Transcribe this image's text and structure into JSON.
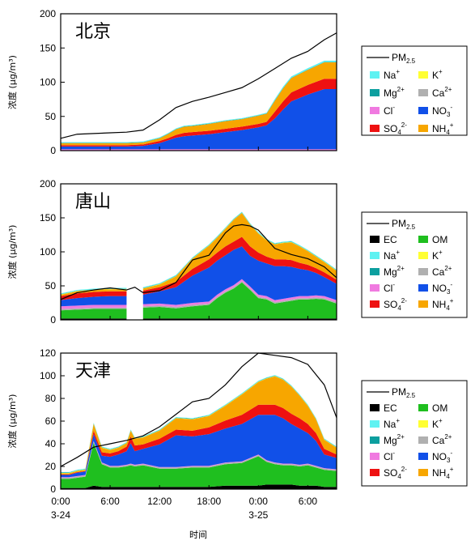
{
  "colors": {
    "EC": "#000000",
    "OM": "#1fbf1f",
    "Na+": "#5ff2f2",
    "K+": "#ffff33",
    "Mg2+": "#0c9f9f",
    "Ca2+": "#b0b0b0",
    "Cl-": "#f07ae0",
    "NO3-": "#1150e8",
    "SO42-": "#ee1111",
    "NH4+": "#f7a600",
    "PM2.5": "#000000"
  },
  "x_ticks": [
    {
      "h": 0,
      "label": "0:00",
      "sub": "3-24"
    },
    {
      "h": 6,
      "label": "6:00",
      "sub": ""
    },
    {
      "h": 12,
      "label": "12:00",
      "sub": ""
    },
    {
      "h": 18,
      "label": "18:00",
      "sub": ""
    },
    {
      "h": 24,
      "label": "0:00",
      "sub": "3-25"
    },
    {
      "h": 30,
      "label": "6:00",
      "sub": ""
    }
  ],
  "xlabel": "时间",
  "chart_data": [
    {
      "type": "area",
      "title": "北京",
      "ylabel": "浓度 (μg/m³)",
      "ylim": [
        0,
        200
      ],
      "yticks": [
        0,
        50,
        100,
        150,
        200
      ],
      "xlim": [
        0,
        33.5
      ],
      "x": [
        0,
        2,
        4,
        6,
        8,
        10,
        12,
        13,
        14,
        15,
        16,
        18,
        20,
        22,
        24,
        25,
        26,
        27,
        28,
        30,
        32,
        33.5
      ],
      "series": [
        {
          "key": "Cl-",
          "values": [
            2,
            2,
            2,
            2,
            2,
            2,
            2,
            2,
            2,
            2,
            2,
            2,
            2,
            2,
            2,
            2,
            2,
            2,
            2,
            2,
            2,
            2
          ]
        },
        {
          "key": "NO3-",
          "values": [
            4,
            4,
            4,
            4,
            4,
            5,
            9,
            13,
            17,
            19,
            20,
            22,
            25,
            28,
            32,
            35,
            45,
            58,
            70,
            80,
            88,
            88
          ]
        },
        {
          "key": "SO42-",
          "values": [
            2,
            2,
            2,
            2,
            2,
            2,
            3,
            3,
            4,
            5,
            5,
            5,
            5,
            5,
            5,
            5,
            10,
            12,
            13,
            14,
            15,
            15
          ]
        },
        {
          "key": "NH4+",
          "values": [
            3,
            3,
            3,
            3,
            3,
            3,
            4,
            6,
            8,
            9,
            9,
            10,
            11,
            11,
            12,
            12,
            16,
            19,
            21,
            22,
            24,
            24
          ]
        },
        {
          "key": "Mg2+",
          "values": [
            0.5,
            0.5,
            0.5,
            0.5,
            0.5,
            0.5,
            0.5,
            0.5,
            0.5,
            0.5,
            0.5,
            0.5,
            0.5,
            0.5,
            0.5,
            0.5,
            0.5,
            0.5,
            0.5,
            0.5,
            0.5,
            0.5
          ]
        },
        {
          "key": "Na+",
          "values": [
            1,
            1,
            1,
            1,
            1,
            1,
            1,
            1,
            1,
            1,
            1,
            1,
            1,
            1,
            1,
            1,
            2,
            2,
            2,
            2,
            2,
            2
          ]
        }
      ],
      "pm25": {
        "x": [
          0,
          2,
          4,
          6,
          8,
          10,
          12,
          14,
          16,
          18,
          20,
          22,
          24,
          26,
          28,
          30,
          32,
          33.5
        ],
        "values": [
          18,
          24,
          25,
          26,
          27,
          30,
          45,
          63,
          72,
          78,
          85,
          92,
          105,
          120,
          135,
          145,
          162,
          172
        ]
      },
      "legend": [
        "PM2.5",
        "Na+",
        "K+",
        "Mg2+",
        "Ca2+",
        "Cl-",
        "NO3-",
        "SO42-",
        "NH4+"
      ]
    },
    {
      "type": "area",
      "title": "唐山",
      "ylabel": "浓度 (μg/m³)",
      "ylim": [
        0,
        200
      ],
      "yticks": [
        0,
        50,
        100,
        150,
        200
      ],
      "xlim": [
        0,
        33.5
      ],
      "x": [
        0,
        2,
        4,
        6,
        8,
        10,
        12,
        14,
        16,
        18,
        19,
        20,
        21,
        22,
        23,
        24,
        25,
        26,
        27,
        28,
        29,
        30,
        31,
        32,
        33.5
      ],
      "gap": [
        8,
        10
      ],
      "series": [
        {
          "key": "EC",
          "values": [
            2,
            2,
            2,
            2,
            2,
            2,
            2,
            2,
            2,
            2,
            2,
            2,
            2,
            2,
            2,
            2,
            2,
            2,
            2,
            2,
            2,
            2,
            2,
            2,
            2
          ]
        },
        {
          "key": "OM",
          "values": [
            12,
            13,
            14,
            14,
            14,
            16,
            17,
            15,
            18,
            20,
            30,
            38,
            44,
            53,
            42,
            30,
            28,
            22,
            24,
            26,
            28,
            28,
            29,
            28,
            22
          ]
        },
        {
          "key": "Ca2+",
          "values": [
            2,
            2,
            2,
            2,
            2,
            2,
            2,
            2,
            2,
            2,
            2,
            2,
            2,
            2,
            2,
            2,
            2,
            2,
            2,
            2,
            2,
            2,
            2,
            2,
            2
          ]
        },
        {
          "key": "Cl-",
          "values": [
            4,
            4,
            4,
            4,
            4,
            3,
            3,
            3,
            3,
            3,
            3,
            3,
            3,
            3,
            3,
            3,
            3,
            3,
            3,
            3,
            3,
            3,
            3,
            3,
            3
          ]
        },
        {
          "key": "NO3-",
          "values": [
            9,
            11,
            12,
            13,
            13,
            14,
            18,
            26,
            40,
            50,
            50,
            50,
            52,
            48,
            45,
            50,
            48,
            50,
            48,
            45,
            40,
            38,
            33,
            28,
            24
          ]
        },
        {
          "key": "SO42-",
          "values": [
            6,
            7,
            7,
            7,
            7,
            6,
            6,
            8,
            10,
            12,
            12,
            13,
            12,
            14,
            14,
            12,
            10,
            10,
            10,
            10,
            9,
            8,
            7,
            7,
            6
          ]
        },
        {
          "key": "NH4+",
          "values": [
            2,
            3,
            3,
            3,
            3,
            3,
            4,
            8,
            15,
            20,
            22,
            26,
            32,
            35,
            32,
            28,
            24,
            22,
            24,
            26,
            24,
            20,
            17,
            15,
            13
          ]
        },
        {
          "key": "K+",
          "values": [
            0.5,
            0.5,
            0.5,
            0.5,
            0.5,
            0.5,
            0.5,
            0.5,
            0.5,
            0.5,
            0.5,
            0.5,
            0.5,
            0.5,
            0.5,
            0.5,
            0.5,
            0.5,
            0.5,
            0.5,
            0.5,
            0.5,
            0.5,
            0.5,
            0.5
          ]
        },
        {
          "key": "Mg2+",
          "values": [
            0.5,
            0.5,
            0.5,
            0.5,
            0.5,
            0.5,
            0.5,
            0.5,
            0.5,
            0.5,
            0.5,
            0.5,
            0.5,
            0.5,
            0.5,
            0.5,
            0.5,
            0.5,
            0.5,
            0.5,
            0.5,
            0.5,
            0.5,
            0.5,
            0.5
          ]
        },
        {
          "key": "Na+",
          "values": [
            1,
            1,
            1,
            1,
            1,
            1,
            1,
            1,
            1,
            1,
            1,
            1,
            1,
            1,
            1,
            1,
            1,
            1,
            1,
            1,
            1,
            1,
            1,
            1,
            1
          ]
        }
      ],
      "pm25": {
        "x": [
          0,
          2,
          4,
          6,
          8,
          9,
          10,
          12,
          14,
          16,
          18,
          20,
          21,
          22,
          23,
          24,
          26,
          28,
          30,
          32,
          33.5
        ],
        "values": [
          30,
          40,
          44,
          47,
          44,
          48,
          40,
          43,
          55,
          88,
          95,
          128,
          138,
          140,
          138,
          132,
          105,
          96,
          90,
          78,
          62
        ]
      },
      "legend": [
        "PM2.5",
        "EC",
        "OM",
        "Na+",
        "K+",
        "Mg2+",
        "Ca2+",
        "Cl-",
        "NO3-",
        "SO42-",
        "NH4+"
      ]
    },
    {
      "type": "area",
      "title": "天津",
      "ylabel": "浓度 (μg/m³)",
      "ylim": [
        0,
        120
      ],
      "yticks": [
        0,
        20,
        40,
        60,
        80,
        100,
        120
      ],
      "xlim": [
        0,
        33.5
      ],
      "x": [
        0,
        1,
        2,
        3,
        4,
        5,
        6,
        7,
        8,
        8.5,
        9,
        10,
        12,
        14,
        16,
        18,
        20,
        22,
        24,
        25,
        26,
        27,
        28,
        29,
        30,
        31,
        32,
        33.5
      ],
      "series": [
        {
          "key": "EC",
          "values": [
            1,
            1,
            1,
            1,
            3,
            2,
            2,
            2,
            2,
            2,
            2,
            2,
            2,
            2,
            2,
            2,
            3,
            3,
            3,
            4,
            4,
            4,
            4,
            3,
            3,
            3,
            2,
            2
          ]
        },
        {
          "key": "OM",
          "values": [
            8,
            8,
            9,
            10,
            38,
            20,
            17,
            17,
            18,
            19,
            18,
            19,
            16,
            16,
            17,
            17,
            19,
            20,
            26,
            20,
            18,
            17,
            17,
            17,
            18,
            16,
            15,
            14
          ]
        },
        {
          "key": "Ca2+",
          "values": [
            1,
            1,
            1,
            1,
            1,
            1,
            1,
            1,
            1,
            1,
            1,
            1,
            1,
            1,
            1,
            1,
            1,
            1,
            1,
            1,
            1,
            1,
            1,
            1,
            1,
            1,
            1,
            1
          ]
        },
        {
          "key": "Cl-",
          "values": [
            0.5,
            0.5,
            0.5,
            0.5,
            0.5,
            0.5,
            0.5,
            0.5,
            0.5,
            0.5,
            0.5,
            0.5,
            0.5,
            0.5,
            0.5,
            0.5,
            0.5,
            0.5,
            0.5,
            0.5,
            0.5,
            0.5,
            0.5,
            0.5,
            0.5,
            0.5,
            0.5,
            0.5
          ]
        },
        {
          "key": "NO3-",
          "values": [
            2,
            2,
            3,
            3,
            6,
            6,
            8,
            10,
            12,
            18,
            12,
            13,
            20,
            28,
            26,
            28,
            30,
            33,
            35,
            40,
            42,
            40,
            35,
            32,
            27,
            22,
            12,
            10
          ]
        },
        {
          "key": "SO42-",
          "values": [
            0.5,
            0.5,
            0.5,
            0.5,
            3,
            3,
            3,
            3,
            4,
            6,
            5,
            4,
            5,
            5,
            5,
            6,
            7,
            8,
            9,
            9,
            9,
            9,
            9,
            9,
            8,
            7,
            5,
            3
          ]
        },
        {
          "key": "NH4+",
          "values": [
            1,
            1,
            1,
            1,
            6,
            4,
            3,
            3,
            3,
            5,
            6,
            6,
            7,
            10,
            10,
            10,
            13,
            18,
            20,
            23,
            25,
            25,
            24,
            20,
            16,
            12,
            8,
            6
          ]
        },
        {
          "key": "K+",
          "values": [
            0.3,
            0.3,
            0.3,
            0.3,
            0.3,
            0.3,
            0.3,
            0.3,
            0.3,
            0.3,
            0.3,
            0.3,
            0.3,
            0.3,
            0.3,
            0.3,
            0.3,
            0.3,
            0.3,
            0.3,
            0.3,
            0.3,
            0.3,
            0.3,
            0.3,
            0.3,
            0.3,
            0.3
          ]
        },
        {
          "key": "Mg2+",
          "values": [
            0.3,
            0.3,
            0.3,
            0.3,
            0.3,
            0.3,
            0.3,
            0.3,
            0.3,
            0.3,
            0.3,
            0.3,
            0.3,
            0.3,
            0.3,
            0.3,
            0.3,
            0.3,
            0.3,
            0.3,
            0.3,
            0.3,
            0.3,
            0.3,
            0.3,
            0.3,
            0.3,
            0.3
          ]
        },
        {
          "key": "Na+",
          "values": [
            0.5,
            0.5,
            0.5,
            0.5,
            0.5,
            0.5,
            0.5,
            0.5,
            0.5,
            0.5,
            0.5,
            0.5,
            0.5,
            0.5,
            0.5,
            0.5,
            0.5,
            0.5,
            0.5,
            0.5,
            0.5,
            0.5,
            0.5,
            0.5,
            0.5,
            0.5,
            0.5,
            0.5
          ]
        }
      ],
      "pm25": {
        "x": [
          0,
          2,
          4,
          6,
          8,
          10,
          12,
          14,
          16,
          18,
          20,
          22,
          24,
          26,
          28,
          30,
          32,
          33.5
        ],
        "values": [
          20,
          28,
          37,
          40,
          43,
          47,
          55,
          66,
          77,
          80,
          92,
          108,
          120,
          118,
          116,
          110,
          92,
          63
        ]
      },
      "legend": [
        "PM2.5",
        "EC",
        "OM",
        "Na+",
        "K+",
        "Mg2+",
        "Ca2+",
        "Cl-",
        "NO3-",
        "SO42-",
        "NH4+"
      ]
    }
  ]
}
